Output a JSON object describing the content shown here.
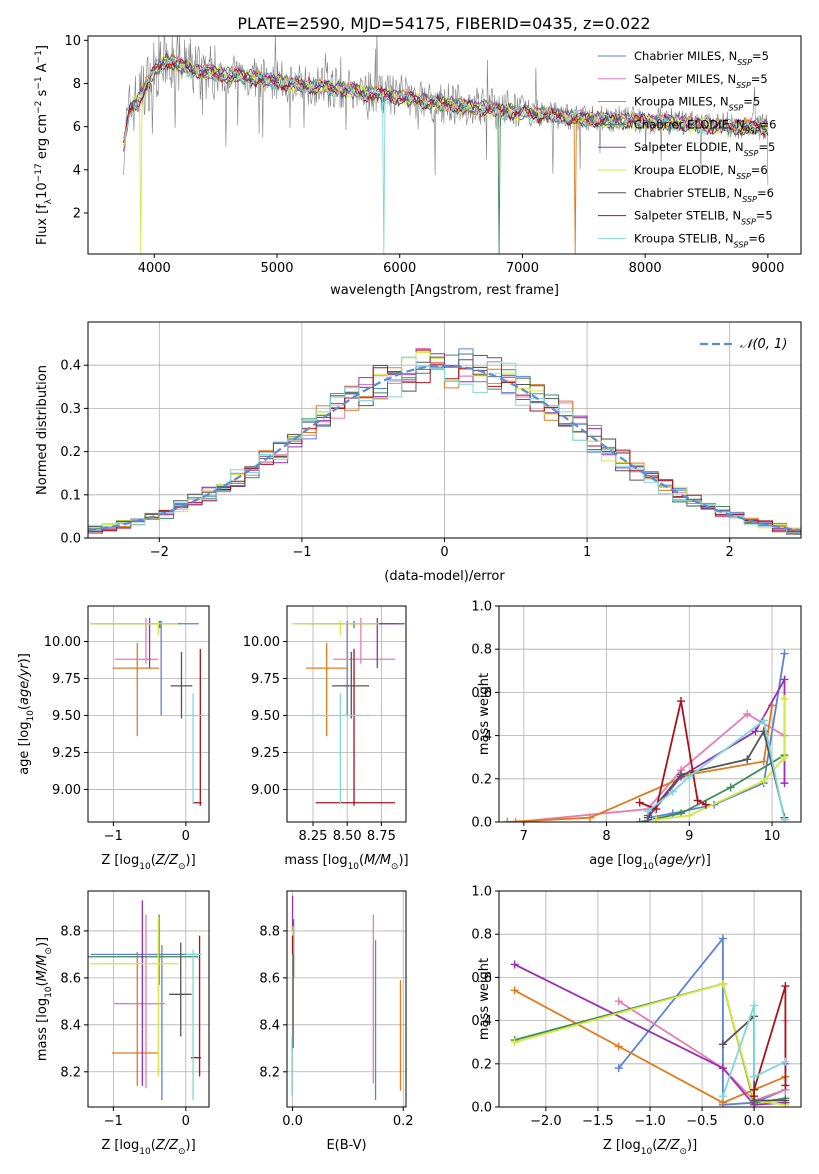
{
  "figure": {
    "title": "PLATE=2590, MJD=54175, FIBERID=0435, z=0.022"
  },
  "models": [
    {
      "key": "chab_miles",
      "color": "#5b82d6"
    },
    {
      "key": "salp_miles",
      "color": "#e67bb8"
    },
    {
      "key": "krou_miles",
      "color": "#e07b1e"
    },
    {
      "key": "chab_elodie",
      "color": "#3e8a58"
    },
    {
      "key": "salp_elodie",
      "color": "#9a2fb0"
    },
    {
      "key": "krou_elodie",
      "color": "#d6e83a"
    },
    {
      "key": "chab_stelib",
      "color": "#555555"
    },
    {
      "key": "salp_stelib",
      "color": "#a8141c"
    },
    {
      "key": "krou_stelib",
      "color": "#7fd8dc"
    }
  ],
  "chart_data": [
    {
      "id": "spectrum",
      "type": "line",
      "xlabel": "wavelength [Angstrom, rest frame]",
      "ylabel": "Flux [f_λ 10^-17 erg cm^-2 s^-1 A^-1]",
      "xlim": [
        3460,
        9270
      ],
      "ylim": [
        0.1,
        10.2
      ],
      "xticks": [
        4000,
        5000,
        6000,
        7000,
        8000,
        9000
      ],
      "yticks": [
        2,
        4,
        6,
        8,
        10
      ],
      "grid": false,
      "legend_position": "top-right",
      "continuum": {
        "x": [
          3750,
          3800,
          3900,
          4000,
          4100,
          4300,
          4500,
          4800,
          5000,
          5500,
          6000,
          6500,
          7000,
          7500,
          8000,
          8500,
          9000
        ],
        "y": [
          5.2,
          6.8,
          7.6,
          8.6,
          9.1,
          8.7,
          8.5,
          8.3,
          8.1,
          7.8,
          7.4,
          7.0,
          6.7,
          6.4,
          6.3,
          6.1,
          6.0
        ]
      },
      "legend": [
        {
          "model": "Chabrier MILES",
          "nssp": "5"
        },
        {
          "model": "Salpeter MILES",
          "nssp": "5"
        },
        {
          "model": "Kroupa MILES",
          "nssp": "5"
        },
        {
          "model": "Chabrier ELODIE",
          "nssp": "6"
        },
        {
          "model": "Salpeter ELODIE",
          "nssp": "5"
        },
        {
          "model": "Kroupa ELODIE",
          "nssp": "6"
        },
        {
          "model": "Chabrier STELIB",
          "nssp": "6"
        },
        {
          "model": "Salpeter STELIB",
          "nssp": "5"
        },
        {
          "model": "Kroupa STELIB",
          "nssp": "6"
        }
      ]
    },
    {
      "id": "residuals",
      "type": "line",
      "xlabel": "(data-model)/error",
      "ylabel": "Normed distribution",
      "xlim": [
        -2.5,
        2.5
      ],
      "ylim": [
        0,
        0.5
      ],
      "xticks": [
        -2,
        -1,
        0,
        1,
        2
      ],
      "yticks": [
        0.0,
        0.1,
        0.2,
        0.3,
        0.4
      ],
      "grid": true,
      "reference_curve": "N(0,1)",
      "legend_position": "top-right"
    },
    {
      "id": "age_vs_Z",
      "type": "scatter",
      "xlabel": "Z [log10(Z/Z⊙)]",
      "ylabel": "age [log10(age/yr)]",
      "xlim": [
        -1.35,
        0.32
      ],
      "ylim": [
        8.78,
        10.24
      ],
      "xticks": [
        -1,
        0
      ],
      "yticks": [
        9.0,
        9.25,
        9.5,
        9.75,
        10.0
      ],
      "grid": true,
      "points": [
        {
          "x": -0.34,
          "xerr": [
            0.98,
            0.52
          ],
          "y": 10.12,
          "yerr": [
            0.62,
            0.02
          ]
        },
        {
          "x": -0.55,
          "xerr": [
            0.43,
            0.17
          ],
          "y": 9.88,
          "yerr": [
            0.03,
            0.28
          ]
        },
        {
          "x": -0.67,
          "xerr": [
            0.34,
            0.3
          ],
          "y": 9.82,
          "yerr": [
            0.46,
            0.17
          ]
        },
        {
          "x": -0.36,
          "xerr": [
            0.88,
            0.28
          ],
          "y": 10.12,
          "yerr": [
            0.03,
            0.02
          ]
        },
        {
          "x": -0.5,
          "xerr": [
            0.02,
            0.02
          ],
          "y": 10.12,
          "yerr": [
            0.3,
            0.04
          ]
        },
        {
          "x": -0.38,
          "xerr": [
            0.94,
            0.28
          ],
          "y": 10.12,
          "yerr": [
            0.08,
            0.02
          ]
        },
        {
          "x": -0.06,
          "xerr": [
            0.15,
            0.15
          ],
          "y": 9.7,
          "yerr": [
            0.22,
            0.23
          ]
        },
        {
          "x": 0.2,
          "xerr": [
            0.1,
            0.02
          ],
          "y": 8.91,
          "yerr": [
            0.02,
            1.04
          ]
        },
        {
          "x": 0.1,
          "xerr": [
            0.1,
            0.15
          ],
          "y": 9.5,
          "yerr": [
            0.6,
            0.15
          ]
        }
      ]
    },
    {
      "id": "age_vs_mass",
      "type": "scatter",
      "xlabel": "mass [log10(M/M⊙)]",
      "ylabel": "",
      "xlim": [
        8.06,
        8.93
      ],
      "ylim": [
        8.78,
        10.24
      ],
      "xticks": [
        8.25,
        8.5,
        8.75
      ],
      "yticks": [
        9.0,
        9.25,
        9.5,
        9.75,
        10.0
      ],
      "grid": true,
      "points": [
        {
          "x": 8.5,
          "xerr": [
            0.38,
            0.2
          ],
          "y": 10.12,
          "yerr": [
            0.62,
            0.02
          ]
        },
        {
          "x": 8.6,
          "xerr": [
            0.2,
            0.25
          ],
          "y": 9.88,
          "yerr": [
            0.03,
            0.28
          ]
        },
        {
          "x": 8.35,
          "xerr": [
            0.15,
            0.15
          ],
          "y": 9.82,
          "yerr": [
            0.46,
            0.17
          ]
        },
        {
          "x": 8.55,
          "xerr": [
            0.33,
            0.33
          ],
          "y": 10.12,
          "yerr": [
            0.03,
            0.02
          ]
        },
        {
          "x": 8.72,
          "xerr": [
            0.3,
            0.2
          ],
          "y": 10.12,
          "yerr": [
            0.3,
            0.04
          ]
        },
        {
          "x": 8.45,
          "xerr": [
            0.36,
            0.28
          ],
          "y": 10.12,
          "yerr": [
            0.08,
            0.02
          ]
        },
        {
          "x": 8.53,
          "xerr": [
            0.14,
            0.13
          ],
          "y": 9.7,
          "yerr": [
            0.22,
            0.23
          ]
        },
        {
          "x": 8.55,
          "xerr": [
            0.28,
            0.3
          ],
          "y": 8.91,
          "yerr": [
            0.02,
            1.04
          ]
        },
        {
          "x": 8.45,
          "xerr": [
            0.22,
            0.22
          ],
          "y": 9.5,
          "yerr": [
            0.6,
            0.15
          ]
        }
      ]
    },
    {
      "id": "weight_vs_age",
      "type": "line",
      "xlabel": "age [log10(age/yr)]",
      "ylabel": "mass weight",
      "xlim": [
        6.7,
        10.35
      ],
      "ylim": [
        0,
        1
      ],
      "xticks": [
        7,
        8,
        9,
        10
      ],
      "yticks": [
        0.0,
        0.2,
        0.4,
        0.6,
        0.8,
        1.0
      ],
      "grid": true,
      "series": [
        {
          "x": [
            8.5,
            8.8,
            9.3,
            9.9,
            10.15
          ],
          "y": [
            0.02,
            0.04,
            0.08,
            0.18,
            0.78
          ]
        },
        {
          "x": [
            6.9,
            8.5,
            8.9,
            9.7,
            10.15
          ],
          "y": [
            0.0,
            0.06,
            0.24,
            0.5,
            0.4
          ]
        },
        {
          "x": [
            6.8,
            7.8,
            9.0,
            9.9,
            10.0
          ],
          "y": [
            0.0,
            0.02,
            0.22,
            0.28,
            0.54
          ]
        },
        {
          "x": [
            8.4,
            8.9,
            9.5,
            10.15
          ],
          "y": [
            0.0,
            0.04,
            0.16,
            0.31
          ]
        },
        {
          "x": [
            8.5,
            8.9,
            9.8,
            10.15,
            10.15
          ],
          "y": [
            0.02,
            0.21,
            0.42,
            0.66,
            0.18
          ]
        },
        {
          "x": [
            8.6,
            9.0,
            9.9,
            10.15,
            10.15
          ],
          "y": [
            0.01,
            0.03,
            0.19,
            0.3,
            0.57
          ]
        },
        {
          "x": [
            8.5,
            8.9,
            9.7,
            9.9,
            10.15
          ],
          "y": [
            0.03,
            0.22,
            0.29,
            0.42,
            0.02
          ]
        },
        {
          "x": [
            8.4,
            8.6,
            8.9,
            9.1,
            9.2
          ],
          "y": [
            0.09,
            0.06,
            0.56,
            0.1,
            0.08
          ]
        },
        {
          "x": [
            8.5,
            8.8,
            9.0,
            9.9,
            10.15
          ],
          "y": [
            0.05,
            0.14,
            0.21,
            0.47,
            0.01
          ]
        }
      ]
    },
    {
      "id": "mass_vs_Z",
      "type": "scatter",
      "xlabel": "Z [log10(Z/Z⊙)]",
      "ylabel": "mass [log10(M/M⊙)]",
      "xlim": [
        -1.35,
        0.32
      ],
      "ylim": [
        8.05,
        8.97
      ],
      "xticks": [
        -1,
        0
      ],
      "yticks": [
        8.2,
        8.4,
        8.6,
        8.8
      ],
      "grid": true,
      "points": [
        {
          "x": -0.33,
          "xerr": [
            0.98,
            0.52
          ],
          "y": 8.7,
          "yerr": [
            0.62,
            0.04
          ]
        },
        {
          "x": -0.55,
          "xerr": [
            0.44,
            0.26
          ],
          "y": 8.49,
          "yerr": [
            0.36,
            0.38
          ]
        },
        {
          "x": -0.67,
          "xerr": [
            0.35,
            0.3
          ],
          "y": 8.28,
          "yerr": [
            0.14,
            0.43
          ]
        },
        {
          "x": -0.37,
          "xerr": [
            0.98,
            0.54
          ],
          "y": 8.69,
          "yerr": [
            0.12,
            0.18
          ]
        },
        {
          "x": -0.6,
          "xerr": [
            0.02,
            0.02
          ],
          "y": 8.69,
          "yerr": [
            0.55,
            0.24
          ]
        },
        {
          "x": -0.38,
          "xerr": [
            0.94,
            0.28
          ],
          "y": 8.66,
          "yerr": [
            0.48,
            0.2
          ]
        },
        {
          "x": -0.07,
          "xerr": [
            0.16,
            0.15
          ],
          "y": 8.53,
          "yerr": [
            0.18,
            0.22
          ]
        },
        {
          "x": 0.19,
          "xerr": [
            0.12,
            0.02
          ],
          "y": 8.26,
          "yerr": [
            0.08,
            0.52
          ]
        },
        {
          "x": 0.1,
          "xerr": [
            0.1,
            0.12
          ],
          "y": 8.7,
          "yerr": [
            0.62,
            0.02
          ]
        }
      ]
    },
    {
      "id": "mass_vs_ebv",
      "type": "scatter",
      "xlabel": "E(B-V)",
      "ylabel": "",
      "xlim": [
        -0.01,
        0.205
      ],
      "ylim": [
        8.05,
        8.97
      ],
      "xticks": [
        0.0,
        0.2
      ],
      "yticks": [
        8.2,
        8.4,
        8.6,
        8.8
      ],
      "grid": true,
      "points": [
        {
          "x": 0.15,
          "yerr": [
            8.08,
            8.76
          ]
        },
        {
          "x": 0.146,
          "yerr": [
            8.15,
            8.87
          ]
        },
        {
          "x": 0.195,
          "yerr": [
            8.12,
            8.59
          ]
        },
        {
          "x": 0.002,
          "yerr": [
            8.6,
            8.85
          ]
        },
        {
          "x": 0.0,
          "yerr": [
            8.8,
            8.95
          ]
        },
        {
          "x": 0.001,
          "yerr": [
            8.4,
            8.82
          ]
        },
        {
          "x": 0.001,
          "yerr": [
            8.3,
            8.7
          ]
        },
        {
          "x": 0.0,
          "yerr": [
            8.7,
            8.78
          ]
        },
        {
          "x": -0.001,
          "yerr": [
            8.1,
            8.35
          ]
        }
      ]
    },
    {
      "id": "weight_vs_Z",
      "type": "line",
      "xlabel": "Z [log10(Z/Z⊙)]",
      "ylabel": "mass weight",
      "xlim": [
        -2.45,
        0.45
      ],
      "ylim": [
        0,
        1
      ],
      "xticks": [
        -2.0,
        -1.5,
        -1.0,
        -0.5,
        0.0
      ],
      "yticks": [
        0.0,
        0.2,
        0.4,
        0.6,
        0.8,
        1.0
      ],
      "grid": true,
      "series": [
        {
          "x": [
            -1.3,
            -0.3,
            -0.3,
            0.0,
            0.3,
            0.3
          ],
          "y": [
            0.18,
            0.78,
            0.01,
            0.02,
            0.08,
            0.2
          ]
        },
        {
          "x": [
            -1.3,
            -0.3,
            0.0,
            0.3,
            0.3
          ],
          "y": [
            0.49,
            0.18,
            0.03,
            0.08,
            0.4
          ]
        },
        {
          "x": [
            -2.3,
            -1.3,
            -0.3,
            0.0,
            0.3
          ],
          "y": [
            0.54,
            0.28,
            0.02,
            0.08,
            0.14
          ]
        },
        {
          "x": [
            -2.3,
            -0.3,
            0.0,
            0.3
          ],
          "y": [
            0.31,
            0.57,
            0.02,
            0.04
          ]
        },
        {
          "x": [
            -2.3,
            -0.3,
            0.0,
            0.3
          ],
          "y": [
            0.66,
            0.18,
            0.01,
            0.02
          ]
        },
        {
          "x": [
            -2.3,
            -0.3,
            0.0,
            0.3
          ],
          "y": [
            0.3,
            0.57,
            0.03,
            0.01
          ]
        },
        {
          "x": [
            -0.3,
            0.0,
            0.0,
            0.3
          ],
          "y": [
            0.29,
            0.42,
            0.03,
            0.03
          ]
        },
        {
          "x": [
            0.0,
            0.0,
            0.3,
            0.3
          ],
          "y": [
            0.05,
            0.08,
            0.56,
            0.1
          ]
        },
        {
          "x": [
            -0.3,
            0.0,
            0.0,
            0.3
          ],
          "y": [
            0.05,
            0.47,
            0.14,
            0.21
          ]
        }
      ]
    }
  ]
}
